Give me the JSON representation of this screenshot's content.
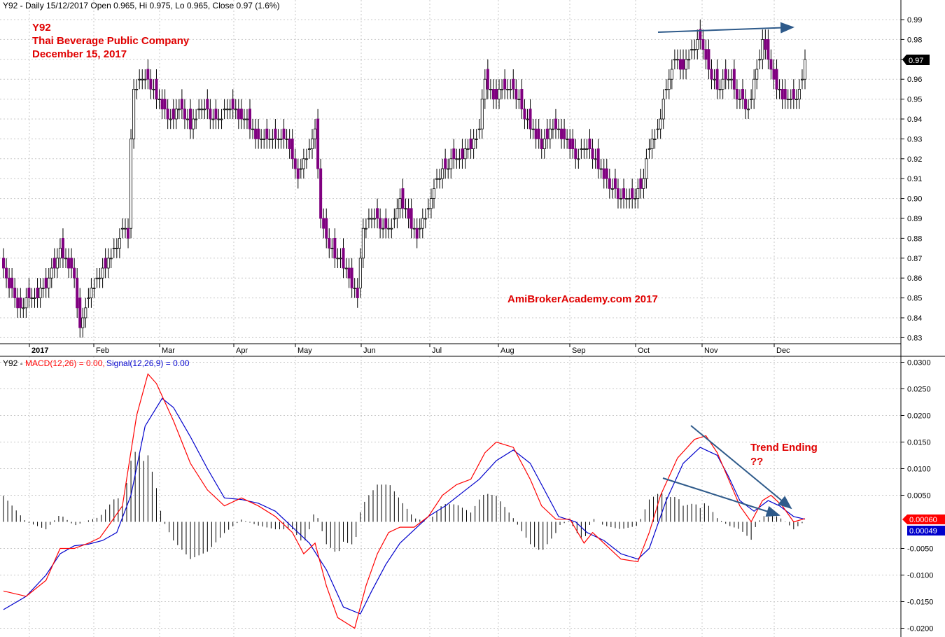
{
  "header": {
    "price_line": "Y92 - Daily 15/12/2017 Open 0.965, Hi 0.975, Lo 0.965, Close 0.97 (1.6%)",
    "macd_prefix": "Y92 - ",
    "macd_label": "MACD(12,26) = 0.00,",
    "signal_label": "Signal(12,26,9) = 0.00"
  },
  "annotations": {
    "ticker": "Y92",
    "company": "Thai Beverage Public Company",
    "date": "December 15, 2017",
    "watermark": "AmiBrokerAcademy.com  2017",
    "trend_line1": "Trend Ending",
    "trend_line2": "??"
  },
  "price_badge": "0.97",
  "macd_badges": {
    "macd": "0.00060",
    "signal": "0.00049"
  },
  "colors": {
    "up_candle": "#ffffff",
    "down_candle": "#800080",
    "macd_line": "#ff0000",
    "signal_line": "#0000cc",
    "annotation_red": "#e00000",
    "trend_arrow": "#2e5a8a",
    "grid": "#c8c8c8"
  },
  "chart_data": [
    {
      "type": "candlestick",
      "title": "Y92 - Daily 15/12/2017 Open 0.965, Hi 0.975, Lo 0.965, Close 0.97 (1.6%)",
      "ylim": [
        0.825,
        0.995
      ],
      "y_ticks": [
        "0.83",
        "0.84",
        "0.85",
        "0.86",
        "0.87",
        "0.88",
        "0.89",
        "0.90",
        "0.91",
        "0.92",
        "0.93",
        "0.94",
        "0.95",
        "0.96",
        "0.97",
        "0.98",
        "0.99"
      ],
      "x_labels": [
        "2017",
        "Feb",
        "Mar",
        "Apr",
        "May",
        "Jun",
        "Jul",
        "Aug",
        "Sep",
        "Oct",
        "Nov",
        "Dec"
      ],
      "grid": true,
      "close_path": [
        [
          0,
          0.865
        ],
        [
          5,
          0.845
        ],
        [
          10,
          0.85
        ],
        [
          15,
          0.855
        ],
        [
          20,
          0.875
        ],
        [
          25,
          0.86
        ],
        [
          27,
          0.835
        ],
        [
          30,
          0.85
        ],
        [
          35,
          0.865
        ],
        [
          40,
          0.875
        ],
        [
          42,
          0.885
        ],
        [
          44,
          0.88
        ],
        [
          45,
          0.93
        ],
        [
          46,
          0.955
        ],
        [
          50,
          0.96
        ],
        [
          55,
          0.95
        ],
        [
          58,
          0.94
        ],
        [
          62,
          0.945
        ],
        [
          66,
          0.935
        ],
        [
          70,
          0.945
        ],
        [
          75,
          0.94
        ],
        [
          80,
          0.945
        ],
        [
          85,
          0.94
        ],
        [
          90,
          0.93
        ],
        [
          95,
          0.93
        ],
        [
          98,
          0.93
        ],
        [
          100,
          0.93
        ],
        [
          104,
          0.91
        ],
        [
          108,
          0.925
        ],
        [
          110,
          0.935
        ],
        [
          112,
          0.89
        ],
        [
          115,
          0.875
        ],
        [
          118,
          0.87
        ],
        [
          122,
          0.86
        ],
        [
          125,
          0.85
        ],
        [
          127,
          0.885
        ],
        [
          130,
          0.89
        ],
        [
          134,
          0.885
        ],
        [
          137,
          0.885
        ],
        [
          140,
          0.9
        ],
        [
          143,
          0.89
        ],
        [
          146,
          0.88
        ],
        [
          150,
          0.895
        ],
        [
          152,
          0.905
        ],
        [
          155,
          0.915
        ],
        [
          160,
          0.92
        ],
        [
          165,
          0.925
        ],
        [
          168,
          0.935
        ],
        [
          170,
          0.96
        ],
        [
          173,
          0.95
        ],
        [
          176,
          0.955
        ],
        [
          180,
          0.955
        ],
        [
          183,
          0.945
        ],
        [
          186,
          0.935
        ],
        [
          190,
          0.925
        ],
        [
          194,
          0.935
        ],
        [
          198,
          0.93
        ],
        [
          202,
          0.92
        ],
        [
          206,
          0.925
        ],
        [
          210,
          0.915
        ],
        [
          214,
          0.905
        ],
        [
          218,
          0.9
        ],
        [
          222,
          0.9
        ],
        [
          225,
          0.905
        ],
        [
          228,
          0.925
        ],
        [
          231,
          0.935
        ],
        [
          234,
          0.955
        ],
        [
          237,
          0.97
        ],
        [
          240,
          0.965
        ],
        [
          243,
          0.975
        ],
        [
          246,
          0.98
        ],
        [
          248,
          0.97
        ],
        [
          252,
          0.955
        ],
        [
          256,
          0.96
        ],
        [
          260,
          0.95
        ],
        [
          263,
          0.945
        ],
        [
          266,
          0.965
        ],
        [
          268,
          0.98
        ],
        [
          270,
          0.97
        ],
        [
          273,
          0.955
        ],
        [
          276,
          0.95
        ],
        [
          279,
          0.95
        ],
        [
          281,
          0.955
        ],
        [
          283,
          0.97
        ]
      ],
      "last_candle": {
        "date": "15/12/2017",
        "open": 0.965,
        "high": 0.975,
        "low": 0.965,
        "close": 0.97,
        "change": "1.6%"
      }
    },
    {
      "type": "line+histogram",
      "title": "Y92 - MACD(12,26) = 0.00, Signal(12,26,9) = 0.00",
      "ylim": [
        -0.021,
        0.031
      ],
      "y_ticks": [
        "0.0300",
        "0.0250",
        "0.0200",
        "0.0150",
        "0.0100",
        "0.0050",
        "-0.0050",
        "-0.0100",
        "-0.0150",
        "-0.0200"
      ],
      "grid": true,
      "series": [
        {
          "name": "MACD(12,26)",
          "color": "#ff0000",
          "points": [
            [
              0,
              -0.013
            ],
            [
              8,
              -0.014
            ],
            [
              15,
              -0.011
            ],
            [
              20,
              -0.005
            ],
            [
              25,
              -0.005
            ],
            [
              30,
              -0.004
            ],
            [
              34,
              -0.003
            ],
            [
              37,
              -0.0008
            ],
            [
              42,
              0.003
            ],
            [
              47,
              0.02
            ],
            [
              51,
              0.0278
            ],
            [
              54,
              0.026
            ],
            [
              60,
              0.019
            ],
            [
              66,
              0.011
            ],
            [
              72,
              0.006
            ],
            [
              78,
              0.003
            ],
            [
              84,
              0.0045
            ],
            [
              90,
              0.003
            ],
            [
              96,
              0.001
            ],
            [
              102,
              -0.002
            ],
            [
              106,
              -0.006
            ],
            [
              110,
              -0.004
            ],
            [
              114,
              -0.012
            ],
            [
              118,
              -0.018
            ],
            [
              124,
              -0.02
            ],
            [
              128,
              -0.012
            ],
            [
              132,
              -0.006
            ],
            [
              136,
              -0.002
            ],
            [
              140,
              -0.001
            ],
            [
              145,
              -0.001
            ],
            [
              150,
              0.001
            ],
            [
              155,
              0.005
            ],
            [
              160,
              0.007
            ],
            [
              165,
              0.008
            ],
            [
              170,
              0.013
            ],
            [
              174,
              0.015
            ],
            [
              180,
              0.014
            ],
            [
              186,
              0.008
            ],
            [
              190,
              0.003
            ],
            [
              195,
              0.0005
            ],
            [
              200,
              0.0005
            ],
            [
              205,
              -0.004
            ],
            [
              208,
              -0.002
            ],
            [
              212,
              -0.004
            ],
            [
              218,
              -0.007
            ],
            [
              224,
              -0.0075
            ],
            [
              228,
              -0.002
            ],
            [
              232,
              0.005
            ],
            [
              238,
              0.012
            ],
            [
              244,
              0.0155
            ],
            [
              248,
              0.0162
            ],
            [
              252,
              0.013
            ],
            [
              256,
              0.008
            ],
            [
              260,
              0.003
            ],
            [
              264,
              0.0
            ],
            [
              268,
              0.004
            ],
            [
              271,
              0.005
            ],
            [
              275,
              0.003
            ],
            [
              279,
              0.0
            ],
            [
              283,
              0.0006
            ]
          ]
        },
        {
          "name": "Signal(12,26,9)",
          "color": "#0000cc",
          "points": [
            [
              0,
              -0.0165
            ],
            [
              8,
              -0.014
            ],
            [
              15,
              -0.01
            ],
            [
              20,
              -0.006
            ],
            [
              25,
              -0.0045
            ],
            [
              30,
              -0.0042
            ],
            [
              35,
              -0.0035
            ],
            [
              40,
              -0.002
            ],
            [
              45,
              0.005
            ],
            [
              50,
              0.018
            ],
            [
              56,
              0.0232
            ],
            [
              60,
              0.0215
            ],
            [
              66,
              0.016
            ],
            [
              72,
              0.01
            ],
            [
              78,
              0.0045
            ],
            [
              84,
              0.0042
            ],
            [
              90,
              0.0035
            ],
            [
              96,
              0.002
            ],
            [
              102,
              -0.001
            ],
            [
              108,
              -0.004
            ],
            [
              114,
              -0.009
            ],
            [
              120,
              -0.016
            ],
            [
              126,
              -0.0173
            ],
            [
              130,
              -0.013
            ],
            [
              135,
              -0.008
            ],
            [
              140,
              -0.004
            ],
            [
              145,
              -0.0015
            ],
            [
              150,
              0.001
            ],
            [
              156,
              0.003
            ],
            [
              162,
              0.0055
            ],
            [
              168,
              0.008
            ],
            [
              174,
              0.0115
            ],
            [
              180,
              0.0135
            ],
            [
              186,
              0.011
            ],
            [
              192,
              0.005
            ],
            [
              196,
              0.001
            ],
            [
              202,
              0.0
            ],
            [
              206,
              -0.002
            ],
            [
              212,
              -0.0035
            ],
            [
              218,
              -0.006
            ],
            [
              224,
              -0.007
            ],
            [
              228,
              -0.005
            ],
            [
              234,
              0.004
            ],
            [
              240,
              0.011
            ],
            [
              246,
              0.014
            ],
            [
              252,
              0.0125
            ],
            [
              256,
              0.0085
            ],
            [
              260,
              0.004
            ],
            [
              265,
              0.002
            ],
            [
              270,
              0.004
            ],
            [
              274,
              0.003
            ],
            [
              279,
              0.001
            ],
            [
              283,
              0.0005
            ]
          ]
        }
      ]
    }
  ]
}
